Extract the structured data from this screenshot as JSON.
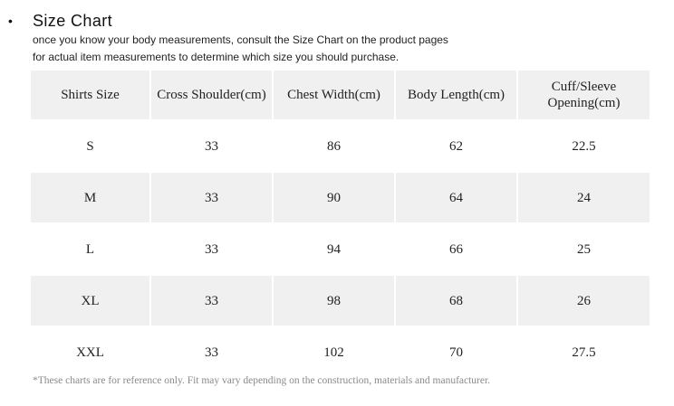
{
  "heading": {
    "bullet": "•",
    "title": "Size  Chart",
    "line1": "once you know your body measurements,  consult the Size  Chart  on the  product pages",
    "line2": "for actual item measurements  to determine  which  size  you should purchase."
  },
  "table": {
    "headers": [
      "Shirts Size",
      "Cross Shoulder(cm)",
      "Chest Width(cm)",
      "Body Length(cm)",
      "Cuff/Sleeve\nOpening(cm)"
    ],
    "rows": [
      [
        "S",
        "33",
        "86",
        "62",
        "22.5"
      ],
      [
        "M",
        "33",
        "90",
        "64",
        "24"
      ],
      [
        "L",
        "33",
        "94",
        "66",
        "25"
      ],
      [
        "XL",
        "33",
        "98",
        "68",
        "26"
      ],
      [
        "XXL",
        "33",
        "102",
        "70",
        "27.5"
      ]
    ],
    "shaded_rows": [
      1,
      3
    ]
  },
  "footnote": "*These charts are for reference only.  Fit may vary depending on the construction, materials and manufacturer.",
  "colors": {
    "cell_shade": "#f0f0f0",
    "text": "#222222",
    "footnote": "#8a8a8a"
  }
}
